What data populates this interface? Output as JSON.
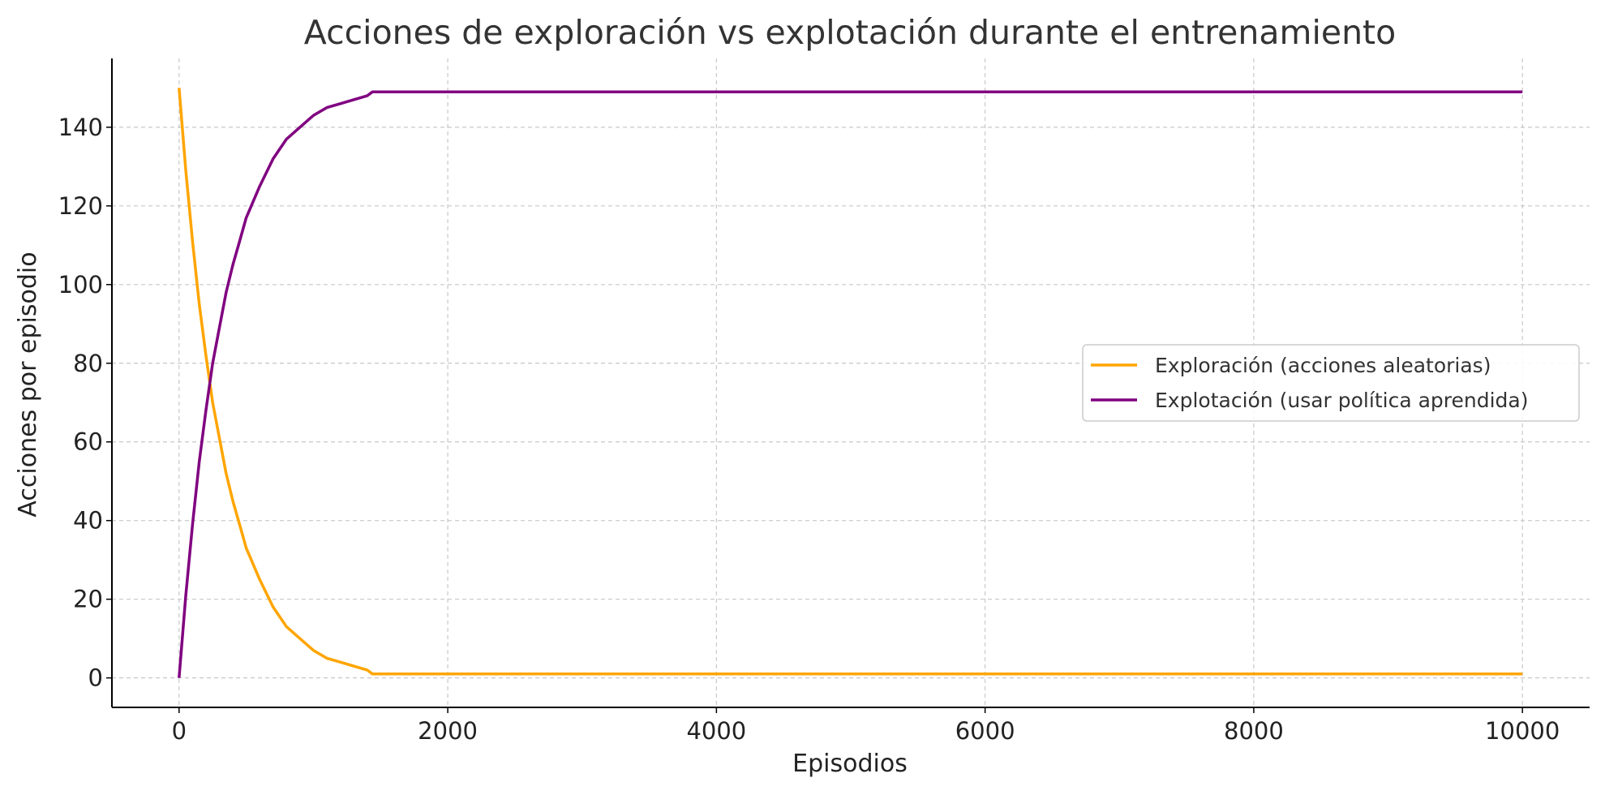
{
  "chart_data": {
    "type": "line",
    "title": "Acciones de exploración vs explotación durante el entrenamiento",
    "xlabel": "Episodios",
    "ylabel": "Acciones por episodio",
    "xlim": [
      -500,
      10500
    ],
    "ylim": [
      -7.5,
      157.5
    ],
    "x_ticks": [
      0,
      2000,
      4000,
      6000,
      8000,
      10000
    ],
    "y_ticks": [
      0,
      20,
      40,
      60,
      80,
      100,
      120,
      140
    ],
    "grid": true,
    "legend_position": "center-right",
    "series": [
      {
        "name": "Exploración (acciones aleatorias)",
        "color": "#FFA500",
        "x": [
          0,
          50,
          100,
          150,
          200,
          250,
          300,
          350,
          400,
          450,
          500,
          600,
          700,
          800,
          900,
          1000,
          1100,
          1200,
          1300,
          1400,
          1440,
          1500,
          2000,
          4000,
          6000,
          8000,
          10000
        ],
        "y": [
          150,
          129,
          111,
          95,
          82,
          70,
          61,
          52,
          45,
          39,
          33,
          25,
          18,
          13,
          10,
          7,
          5,
          4,
          3,
          2,
          1,
          1,
          1,
          1,
          1,
          1,
          1
        ]
      },
      {
        "name": "Explotación (usar política aprendida)",
        "color": "#800080",
        "x": [
          0,
          50,
          100,
          150,
          200,
          250,
          300,
          350,
          400,
          450,
          500,
          600,
          700,
          800,
          900,
          1000,
          1100,
          1200,
          1300,
          1400,
          1440,
          1500,
          2000,
          4000,
          6000,
          8000,
          10000
        ],
        "y": [
          0,
          21,
          39,
          55,
          68,
          80,
          89,
          98,
          105,
          111,
          117,
          125,
          132,
          137,
          140,
          143,
          145,
          146,
          147,
          148,
          149,
          149,
          149,
          149,
          149,
          149,
          149
        ]
      }
    ]
  }
}
